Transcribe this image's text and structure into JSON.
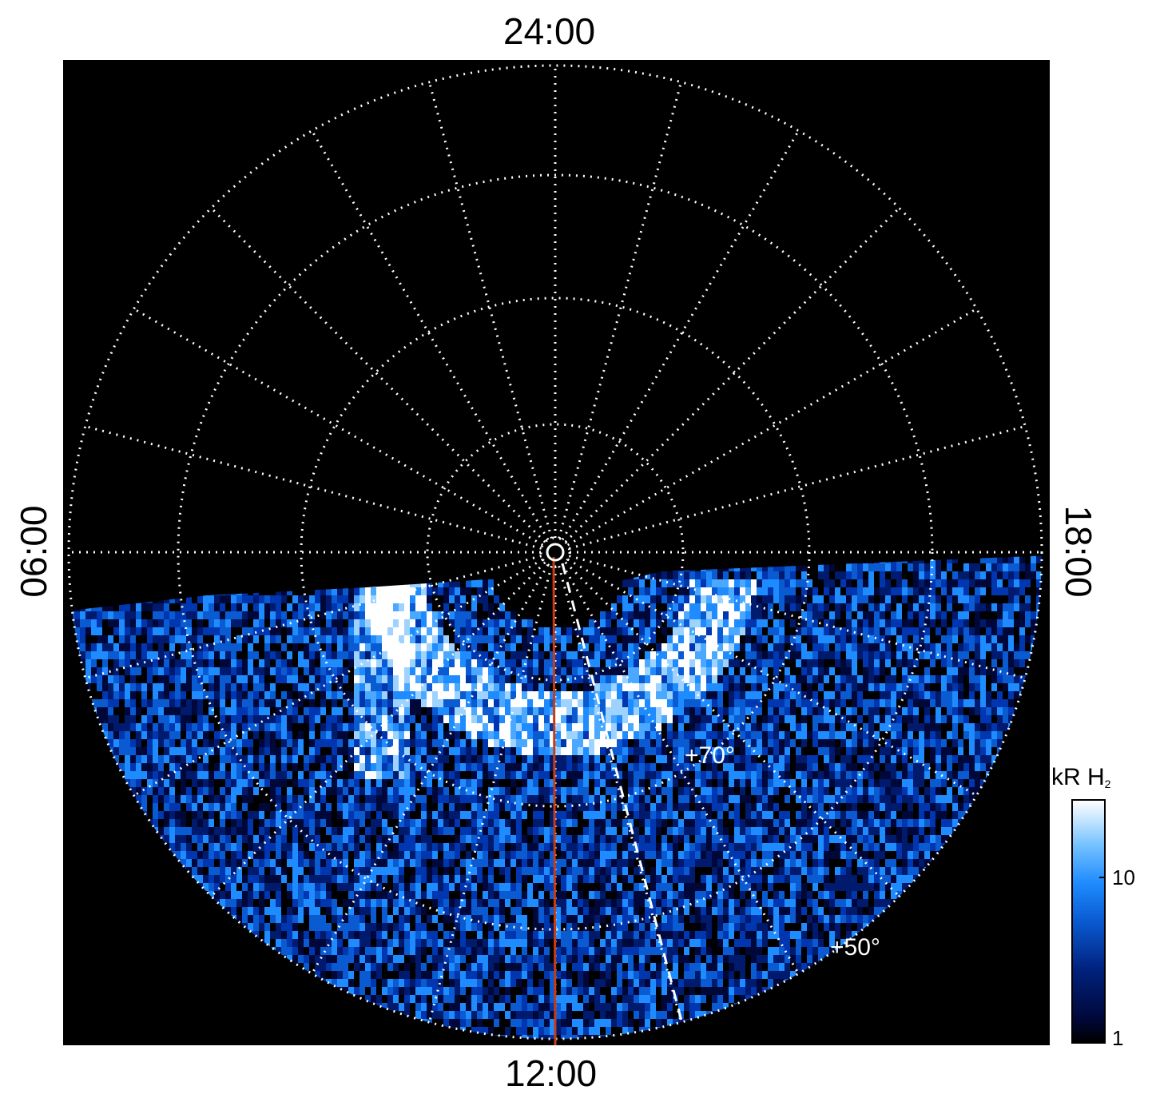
{
  "local_time_labels": {
    "top": "24:00",
    "bottom": "12:00",
    "left": "06:00",
    "right": "18:00"
  },
  "latitude_labels": {
    "inner": "+70°",
    "outer": "+50°"
  },
  "colorbar": {
    "title": "kR H",
    "title_subscript": "2",
    "scale": "log",
    "tick_labels": [
      "10",
      "1"
    ],
    "colors": [
      "#000000",
      "#00217d",
      "#1e8cff",
      "#ffffff"
    ]
  },
  "colors": {
    "background": "#000000",
    "grid": "#ffffff",
    "noon_meridian": "#c83c14",
    "dashed_meridian": "#ffffff"
  }
}
